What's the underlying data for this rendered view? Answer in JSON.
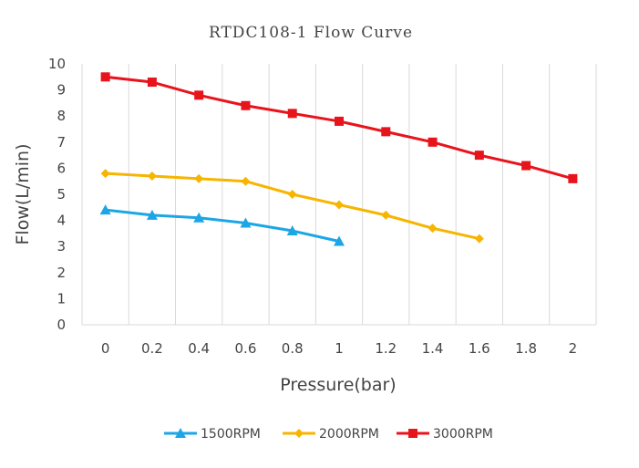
{
  "chart_data": {
    "type": "line",
    "title": "RTDC108-1 Flow Curve",
    "xlabel": "Pressure(bar)",
    "ylabel": "Flow(L/min)",
    "x_ticks": [
      "0",
      "0.2",
      "0.4",
      "0.6",
      "0.8",
      "1",
      "1.2",
      "1.4",
      "1.6",
      "1.8",
      "2"
    ],
    "y_ticks": [
      "0",
      "1",
      "2",
      "3",
      "4",
      "5",
      "6",
      "7",
      "8",
      "9",
      "10"
    ],
    "xlim": [
      0,
      2
    ],
    "ylim": [
      0,
      10
    ],
    "grid": "vertical",
    "legend": "bottom",
    "series": [
      {
        "name": "1500RPM",
        "color": "#1ca6e6",
        "marker": "triangle",
        "x": [
          0,
          0.2,
          0.4,
          0.6,
          0.8,
          1.0
        ],
        "values": [
          4.4,
          4.2,
          4.1,
          3.9,
          3.6,
          3.2
        ]
      },
      {
        "name": "2000RPM",
        "color": "#f7b500",
        "marker": "diamond",
        "x": [
          0,
          0.2,
          0.4,
          0.6,
          0.8,
          1.0,
          1.2,
          1.4,
          1.6
        ],
        "values": [
          5.8,
          5.7,
          5.6,
          5.5,
          5.0,
          4.6,
          4.2,
          3.7,
          3.3
        ]
      },
      {
        "name": "3000RPM",
        "color": "#e8141c",
        "marker": "square",
        "x": [
          0,
          0.2,
          0.4,
          0.6,
          0.8,
          1.0,
          1.2,
          1.4,
          1.6,
          1.8,
          2.0
        ],
        "values": [
          9.5,
          9.3,
          8.8,
          8.4,
          8.1,
          7.8,
          7.4,
          7.0,
          6.5,
          6.1,
          5.6
        ]
      }
    ]
  }
}
